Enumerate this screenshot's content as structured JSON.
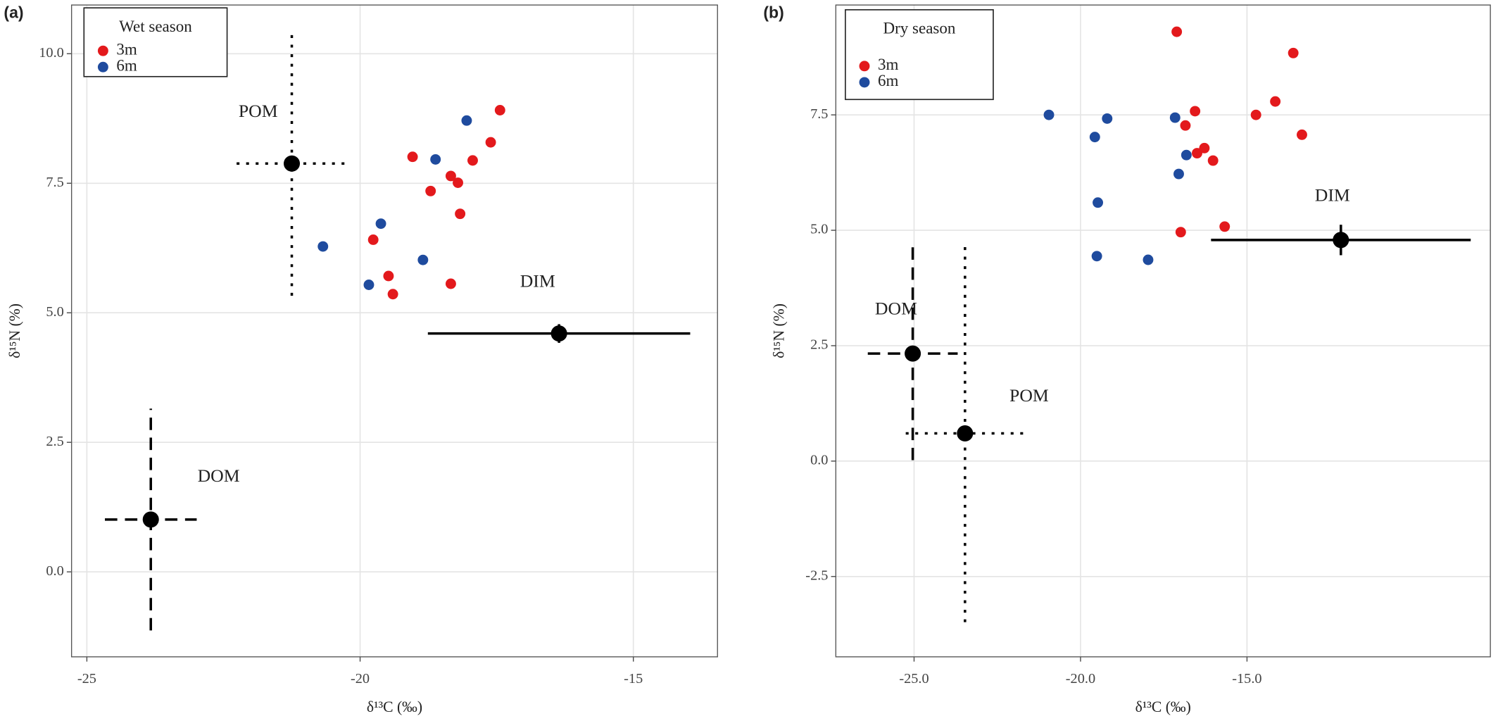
{
  "chart_data": [
    {
      "type": "scatter",
      "panel_label": "(a)",
      "legend_title": "Wet season",
      "legend": "upper left",
      "xlabel": "δ¹³C (‰)",
      "ylabel": "δ¹⁵N (%)",
      "grid": true,
      "xlim": [
        -25.28,
        -13.46
      ],
      "ylim": [
        -1.64,
        10.94
      ],
      "xticks": [
        -25,
        -20,
        -15
      ],
      "yticks": [
        {
          "value": 0,
          "label": "0.0"
        },
        2.5,
        {
          "value": 5,
          "label": "5.0"
        },
        7.5,
        {
          "value": 10,
          "label": "10.0"
        }
      ],
      "series": [
        {
          "name": "3m",
          "color": "#e3191c",
          "x": [
            -17.44,
            -17.61,
            -17.94,
            -19.04,
            -18.34,
            -18.21,
            -18.71,
            -18.17,
            -19.76,
            -19.48,
            -19.4,
            -18.34
          ],
          "y": [
            8.91,
            8.29,
            7.94,
            8.01,
            7.64,
            7.51,
            7.35,
            6.91,
            6.41,
            5.71,
            5.36,
            5.56
          ]
        },
        {
          "name": "6m",
          "color": "#1f4b9e",
          "x": [
            -18.05,
            -18.62,
            -19.62,
            -20.68,
            -18.85,
            -19.84
          ],
          "y": [
            8.71,
            7.96,
            6.72,
            6.28,
            6.02,
            5.54
          ]
        }
      ],
      "sources": [
        {
          "name": "POM",
          "x": -21.25,
          "y": 7.88,
          "xerr": 1.01,
          "yerr": 2.55,
          "style": "dotted"
        },
        {
          "name": "DIM",
          "x": -16.36,
          "y": 4.6,
          "xerr": 2.4,
          "yerr": 0.18,
          "style": "solid"
        },
        {
          "name": "DOM",
          "x": -23.83,
          "y": 1.01,
          "xerr": 0.84,
          "yerr": 2.14,
          "style": "dashed"
        }
      ]
    },
    {
      "type": "scatter",
      "panel_label": "(b)",
      "legend_title": "Dry season",
      "legend": "upper left",
      "xlabel": "δ¹³C (‰)",
      "ylabel": "δ¹⁵N (%)",
      "grid": true,
      "xlim": [
        -27.35,
        -7.69
      ],
      "ylim": [
        -4.24,
        9.88
      ],
      "xticks": [
        {
          "value": -25,
          "label": "-25.0"
        },
        {
          "value": -20,
          "label": "-20.0"
        },
        {
          "value": -15,
          "label": "-15.0"
        }
      ],
      "yticks": [
        -2.5,
        {
          "value": 0,
          "label": "0.0"
        },
        2.5,
        {
          "value": 5,
          "label": "5.0"
        },
        7.5
      ],
      "series": [
        {
          "name": "3m",
          "color": "#e3191c",
          "x": [
            -17.11,
            -13.61,
            -16.56,
            -14.15,
            -14.73,
            -13.35,
            -16.85,
            -16.5,
            -16.28,
            -16.02,
            -16.99,
            -15.67
          ],
          "y": [
            9.3,
            8.84,
            7.58,
            7.79,
            7.5,
            7.07,
            7.27,
            6.67,
            6.78,
            6.51,
            4.96,
            5.08
          ]
        },
        {
          "name": "6m",
          "color": "#1f4b9e",
          "x": [
            -20.95,
            -19.2,
            -17.16,
            -19.57,
            -16.82,
            -17.05,
            -19.48,
            -19.51,
            -17.97
          ],
          "y": [
            7.5,
            7.42,
            7.44,
            7.02,
            6.63,
            6.22,
            5.6,
            4.44,
            4.36
          ]
        }
      ],
      "sources": [
        {
          "name": "DIM",
          "x": -12.18,
          "y": 4.79,
          "xerr": 3.9,
          "yerr": 0.33,
          "style": "solid"
        },
        {
          "name": "DOM",
          "x": -25.04,
          "y": 2.33,
          "xerr": 1.35,
          "yerr": 2.31,
          "style": "dashed"
        },
        {
          "name": "POM",
          "x": -23.47,
          "y": 0.6,
          "xerr": 1.78,
          "yerr": 4.09,
          "style": "dotted"
        }
      ]
    }
  ]
}
